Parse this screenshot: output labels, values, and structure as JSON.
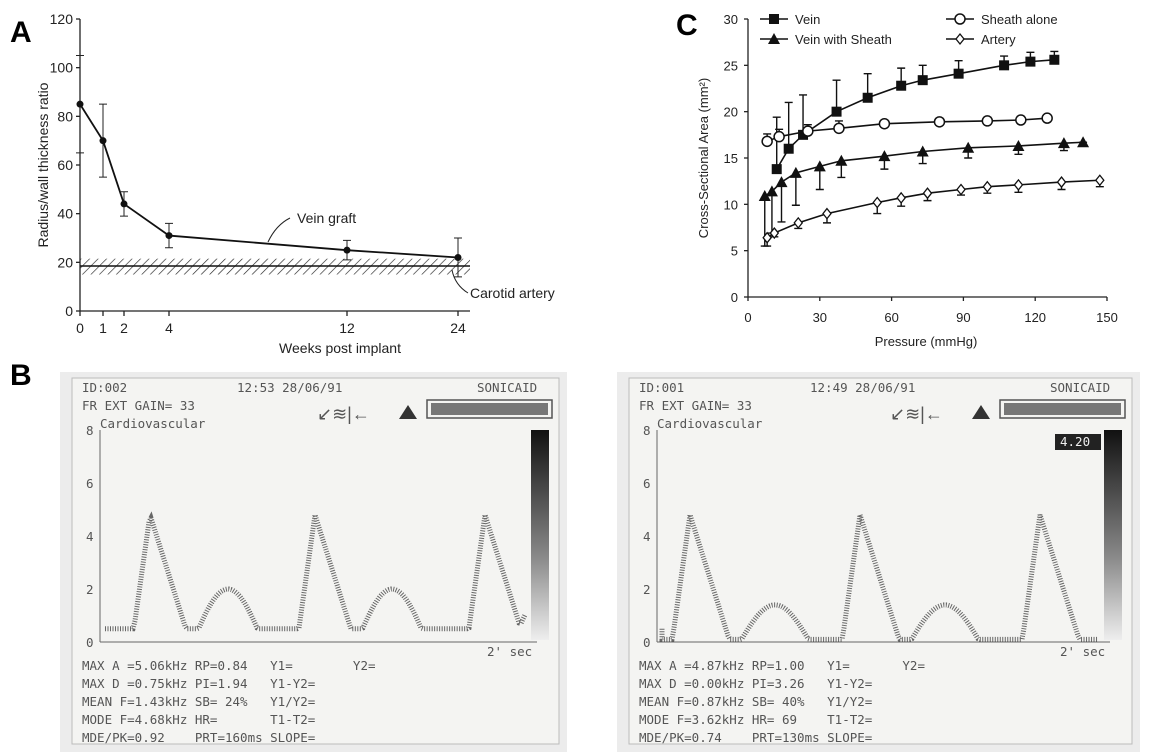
{
  "panel_labels": {
    "a": "A",
    "b": "B",
    "c": "C"
  },
  "chart_data": [
    {
      "type": "line",
      "panel": "A",
      "xlabel": "Weeks post implant",
      "ylabel": "Radius/wall thickness ratio",
      "xticks": [
        "0",
        "1",
        "2",
        "4",
        "12",
        "24"
      ],
      "yticks": [
        "0",
        "20",
        "40",
        "60",
        "80",
        "100",
        "120"
      ],
      "ylim": [
        0,
        120
      ],
      "series": [
        {
          "name": "Vein graft",
          "x": [
            0,
            1,
            2,
            4,
            12,
            24
          ],
          "y": [
            85,
            70,
            44,
            31,
            25,
            22
          ],
          "err": [
            20,
            15,
            5,
            5,
            4,
            8
          ]
        }
      ],
      "band": {
        "name": "Carotid artery",
        "mean": 18.5,
        "low": 15,
        "high": 21.5
      }
    },
    {
      "type": "line",
      "panel": "C",
      "xlabel": "Pressure (mmHg)",
      "ylabel": "Cross-Sectional Area (mm²)",
      "xlim": [
        0,
        150
      ],
      "ylim": [
        0,
        30
      ],
      "xticks": [
        "0",
        "30",
        "60",
        "90",
        "120",
        "150"
      ],
      "yticks": [
        "0",
        "5",
        "10",
        "15",
        "20",
        "25",
        "30"
      ],
      "legend": "top",
      "series": [
        {
          "name": "Vein",
          "marker": "filled-square",
          "x": [
            12,
            17,
            23,
            37,
            50,
            64,
            73,
            88,
            107,
            118,
            128
          ],
          "y": [
            13.8,
            16,
            17.5,
            20,
            21.5,
            22.8,
            23.4,
            24.1,
            25,
            25.4,
            25.6
          ],
          "err_up": [
            19.4,
            21,
            21.8,
            23.4,
            24.1,
            24.7,
            25,
            25.5,
            26,
            26.4,
            26.5
          ]
        },
        {
          "name": "Sheath alone",
          "marker": "open-circle",
          "x": [
            8,
            13,
            25,
            38,
            57,
            80,
            100,
            114,
            125
          ],
          "y": [
            16.8,
            17.3,
            17.9,
            18.2,
            18.7,
            18.9,
            19,
            19.1,
            19.3
          ],
          "err_up": [
            17.6,
            18.1,
            18.6,
            19,
            19,
            19.3,
            19.4,
            19.5,
            19.6
          ]
        },
        {
          "name": "Vein with Sheath",
          "marker": "filled-triangle",
          "x": [
            7,
            10,
            14,
            20,
            30,
            39,
            57,
            73,
            92,
            113,
            132,
            140
          ],
          "y": [
            10.9,
            11.4,
            12.4,
            13.4,
            14.1,
            14.7,
            15.2,
            15.7,
            16.1,
            16.3,
            16.6,
            16.7
          ],
          "err_down": [
            5.5,
            6.9,
            8.1,
            9.9,
            11.6,
            12.9,
            13.8,
            14.4,
            15,
            15.4,
            15.8,
            16.7
          ]
        },
        {
          "name": "Artery",
          "marker": "open-diamond",
          "x": [
            8,
            11,
            21,
            33,
            54,
            64,
            75,
            89,
            100,
            113,
            131,
            147
          ],
          "y": [
            6.4,
            6.9,
            8,
            9,
            10.2,
            10.7,
            11.2,
            11.6,
            11.9,
            12.1,
            12.4,
            12.6
          ],
          "err_down": [
            5.5,
            6.5,
            7.4,
            8,
            9,
            9.8,
            10.4,
            11,
            11.2,
            11.3,
            11.6,
            11.9
          ]
        }
      ]
    }
  ],
  "doppler": [
    {
      "header1": "ID:002",
      "time": "12:53 28/06/91",
      "brand": "SONICAID",
      "header2": "FR EXT   GAIN= 33",
      "mode": "Cardiovascular",
      "yticks": [
        "8",
        "6",
        "4",
        "2",
        "0"
      ],
      "scale": "2' sec",
      "colorbar_label": "",
      "lines": [
        "MAX A =5.06kHz RP=0.84   Y1=        Y2=",
        "MAX D =0.75kHz PI=1.94   Y1-Y2=",
        "MEAN F=1.43kHz SB= 24%   Y1/Y2=",
        "MODE F=4.68kHz HR=       T1-T2=",
        "MDE/PK=0.92    PRT=160ms SLOPE="
      ]
    },
    {
      "header1": "ID:001",
      "time": "12:49 28/06/91",
      "brand": "SONICAID",
      "header2": "FR EXT   GAIN= 33",
      "mode": "Cardiovascular",
      "yticks": [
        "8",
        "6",
        "4",
        "2",
        "0"
      ],
      "scale": "2' sec",
      "colorbar_label": "4.20",
      "lines": [
        "MAX A =4.87kHz RP=1.00   Y1=       Y2=",
        "MAX D =0.00kHz PI=3.26   Y1-Y2=",
        "MEAN F=0.87kHz SB= 40%   Y1/Y2=",
        "MODE F=3.62kHz HR= 69    T1-T2=",
        "MDE/PK=0.74    PRT=130ms SLOPE="
      ]
    }
  ]
}
